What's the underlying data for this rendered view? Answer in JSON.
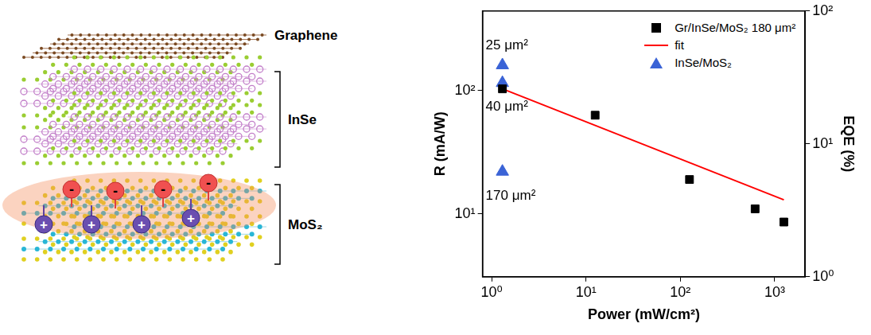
{
  "diagram": {
    "labels": [
      "Graphene",
      "InSe",
      "MoS₂"
    ],
    "electron": "-",
    "hole": "+"
  },
  "chart_data": {
    "type": "scatter",
    "x_label": "Power (mW/cm²)",
    "y_label": "R (mA/W)",
    "y2_label": "EQE (%)",
    "log": true,
    "grid": false,
    "legend": "upper right",
    "xlim": [
      0.8,
      2100
    ],
    "xticks": [
      {
        "value": 1,
        "label": "10⁰"
      },
      {
        "value": 10,
        "label": "10¹"
      },
      {
        "value": 100,
        "label": "10²"
      },
      {
        "value": 1000,
        "label": "10³"
      }
    ],
    "ylim": [
      3.1,
      440
    ],
    "yticks": [
      {
        "value": 10,
        "label": "10¹"
      },
      {
        "value": 100,
        "label": "10²"
      }
    ],
    "y2lim": [
      1,
      100
    ],
    "y2ticks": [
      {
        "value": 1,
        "label": "10⁰"
      },
      {
        "value": 10,
        "label": "10¹"
      },
      {
        "value": 100,
        "label": "10²"
      }
    ],
    "series": [
      {
        "name": "Gr/InSe/MoS₂ 180 μm²",
        "color": "#000000",
        "marker": "square",
        "x": [
          1.3,
          12.5,
          125,
          620,
          1250
        ],
        "values": [
          103,
          63,
          19,
          11,
          8.6
        ]
      },
      {
        "name": "fit",
        "color": "#ff0000",
        "type": "line",
        "marker": "none",
        "line_style": "solid",
        "x": [
          1.3,
          1250
        ],
        "values": [
          103,
          13
        ]
      },
      {
        "name": "InSe/MoS₂",
        "color": "#3a63d6",
        "marker": "triangle",
        "x": [
          1.3,
          1.3,
          1.3
        ],
        "values": [
          160,
          115,
          22
        ],
        "labels": [
          "25 μm²",
          "40 μm²",
          "170 μm²"
        ]
      }
    ]
  }
}
